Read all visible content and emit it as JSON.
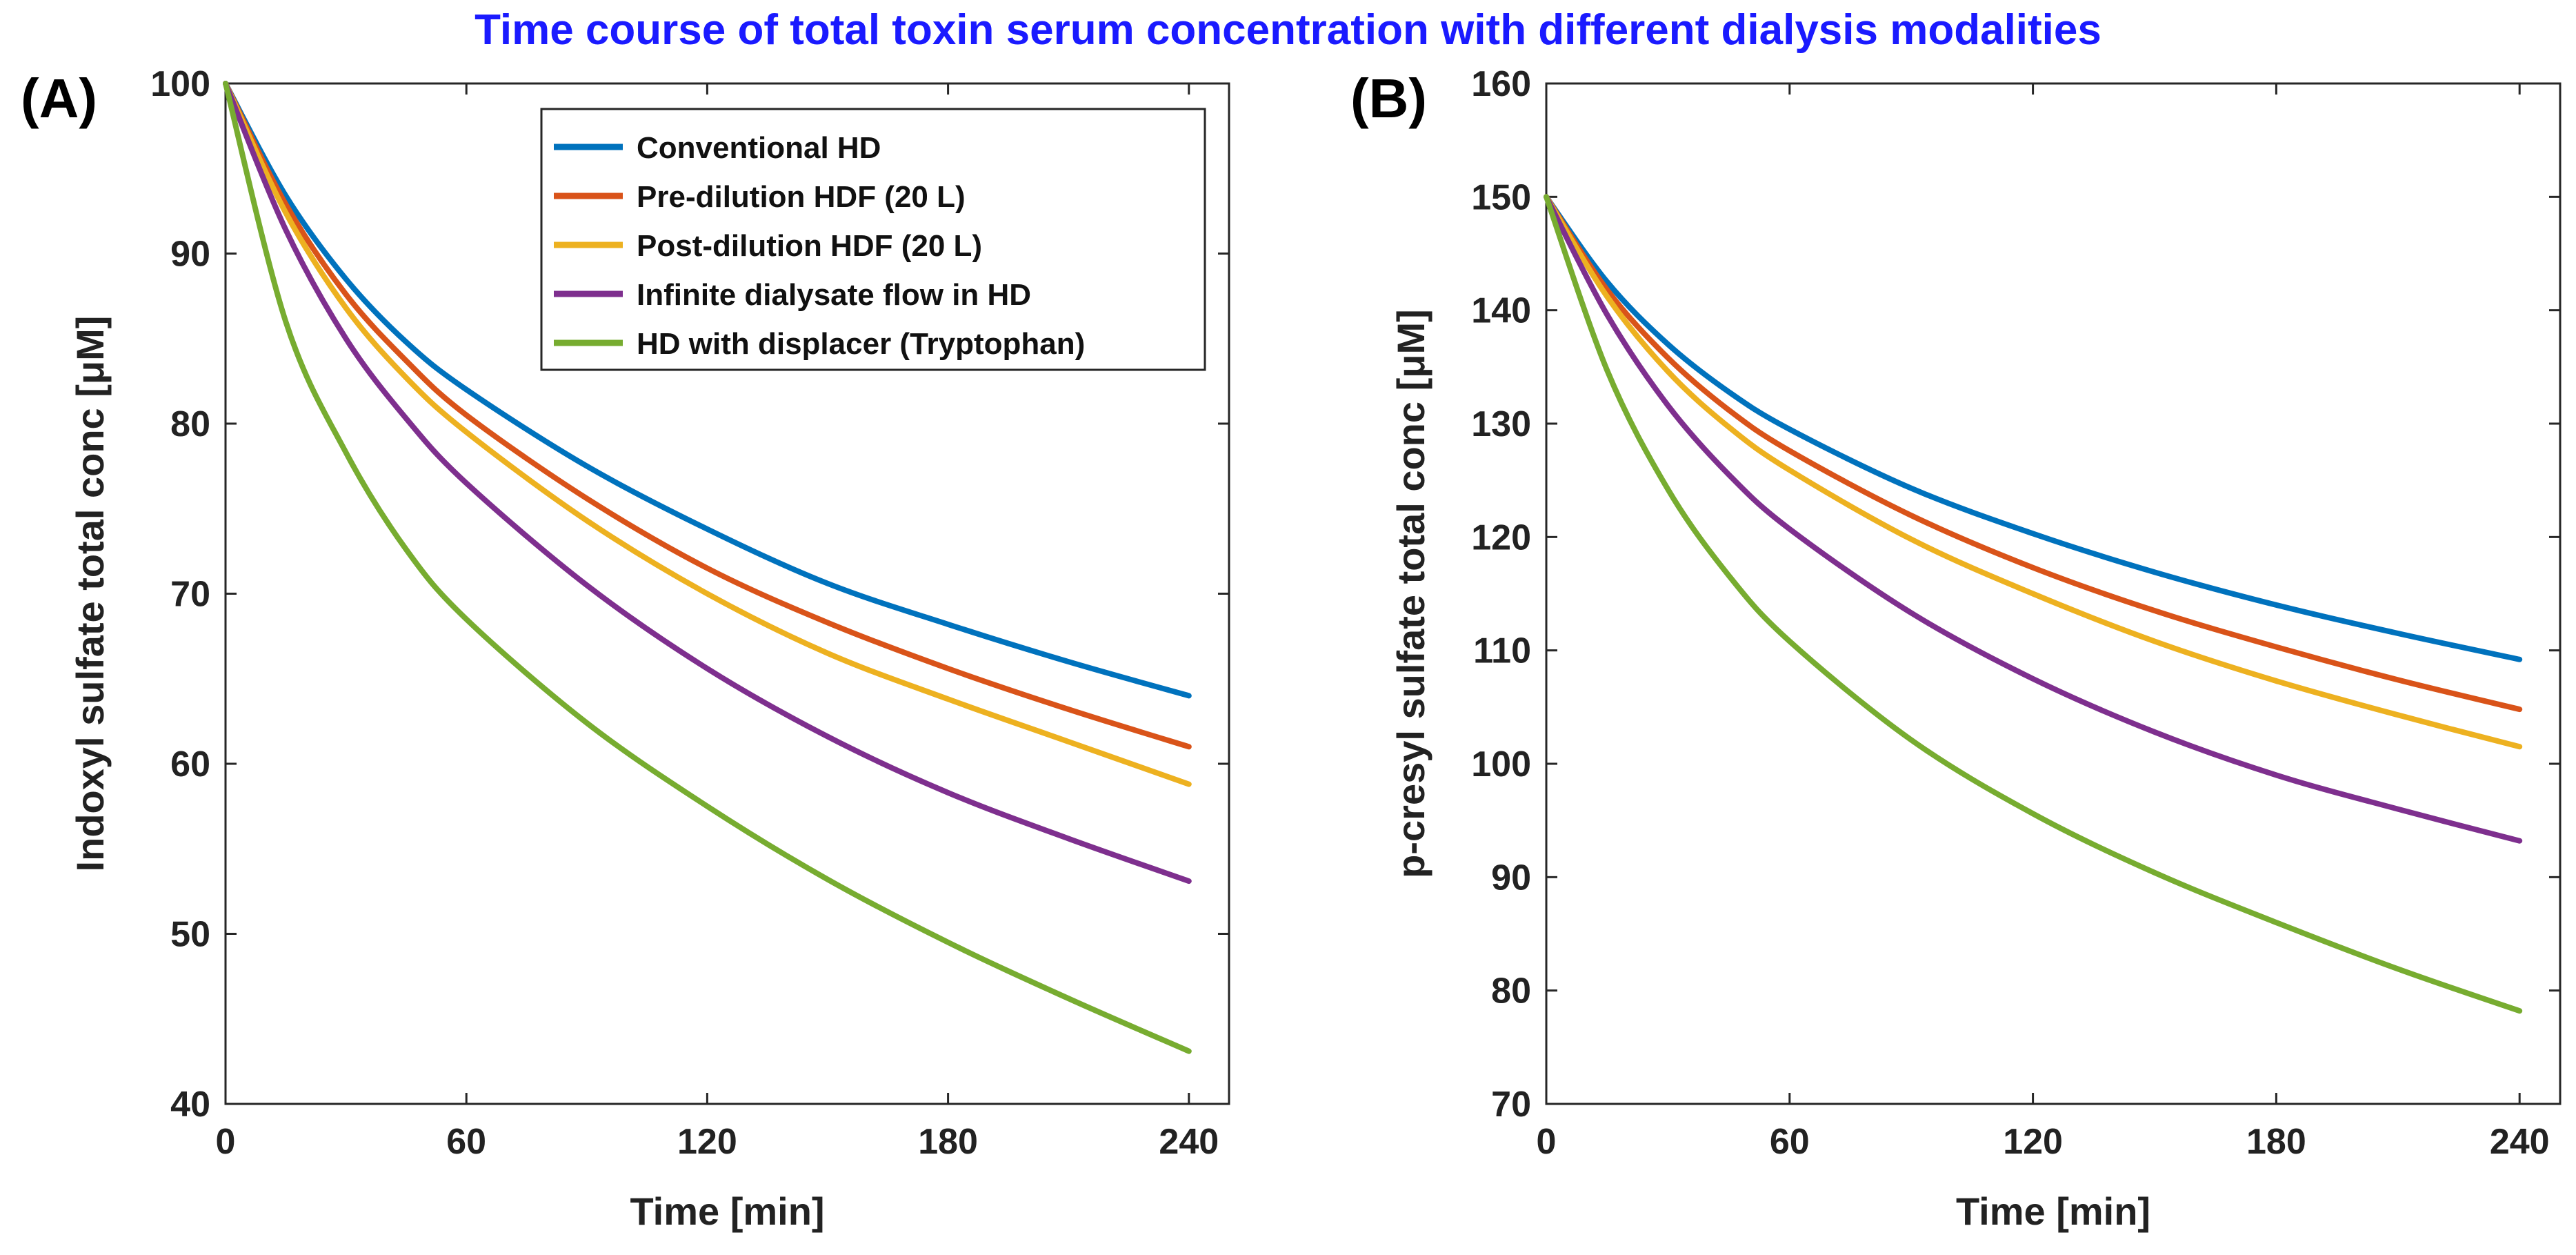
{
  "title": "Time course of total toxin serum concentration with different dialysis modalities",
  "colors": {
    "title": "#1a1aff",
    "series": [
      "#0072BD",
      "#D95319",
      "#EDB120",
      "#7E2F8E",
      "#77AC30"
    ]
  },
  "chart_data": [
    {
      "type": "line",
      "panel": "(A)",
      "xlabel": "Time [min]",
      "ylabel": "Indoxyl sulfate total conc [μM]",
      "xlim": [
        0,
        250
      ],
      "ylim": [
        40,
        100
      ],
      "xticks": [
        0,
        60,
        120,
        180,
        240
      ],
      "yticks": [
        40,
        50,
        60,
        70,
        80,
        90,
        100
      ],
      "legend_position": "top-right",
      "x": [
        0,
        15,
        30,
        45,
        60,
        90,
        120,
        150,
        180,
        210,
        240
      ],
      "series": [
        {
          "name": "Conventional HD",
          "values": [
            100,
            93.4,
            88.5,
            84.8,
            82.0,
            77.5,
            73.8,
            70.6,
            68.2,
            66.0,
            64.0
          ]
        },
        {
          "name": "Pre-dilution HDF (20 L)",
          "values": [
            100,
            92.9,
            87.6,
            83.7,
            80.5,
            75.6,
            71.5,
            68.3,
            65.6,
            63.2,
            61.0
          ]
        },
        {
          "name": "Post-dilution HDF (20 L)",
          "values": [
            100,
            92.4,
            86.8,
            82.7,
            79.5,
            74.3,
            70.0,
            66.5,
            63.8,
            61.3,
            58.8
          ]
        },
        {
          "name": "Infinite dialysate flow in HD",
          "values": [
            100,
            91.4,
            85.0,
            80.3,
            76.5,
            70.5,
            65.6,
            61.6,
            58.3,
            55.6,
            53.1
          ]
        },
        {
          "name": "HD with displacer (Tryptophan)",
          "values": [
            100,
            86.0,
            78.3,
            72.6,
            68.5,
            62.4,
            57.5,
            53.2,
            49.5,
            46.2,
            43.1
          ]
        }
      ]
    },
    {
      "type": "line",
      "panel": "(B)",
      "xlabel": "Time [min]",
      "ylabel": "p-cresyl sulfate total conc [μM]",
      "xlim": [
        0,
        250
      ],
      "ylim": [
        70,
        160
      ],
      "xticks": [
        0,
        60,
        120,
        180,
        240
      ],
      "yticks": [
        70,
        80,
        90,
        100,
        110,
        120,
        130,
        140,
        150,
        160
      ],
      "x": [
        0,
        15,
        30,
        45,
        60,
        90,
        120,
        150,
        180,
        210,
        240
      ],
      "series": [
        {
          "name": "Conventional HD",
          "values": [
            150,
            142.5,
            137.0,
            132.8,
            129.5,
            124.3,
            120.3,
            116.9,
            114.0,
            111.5,
            109.2
          ]
        },
        {
          "name": "Pre-dilution HDF (20 L)",
          "values": [
            150,
            141.8,
            135.8,
            131.2,
            127.6,
            121.9,
            117.3,
            113.5,
            110.3,
            107.4,
            104.8
          ]
        },
        {
          "name": "Post-dilution HDF (20 L)",
          "values": [
            150,
            141.2,
            134.6,
            129.7,
            125.9,
            119.8,
            115.0,
            110.8,
            107.3,
            104.3,
            101.5
          ]
        },
        {
          "name": "Infinite dialysate flow in HD",
          "values": [
            150,
            139.6,
            131.6,
            125.5,
            120.7,
            113.3,
            107.5,
            102.8,
            99.0,
            96.0,
            93.2
          ]
        },
        {
          "name": "HD with displacer (Tryptophan)",
          "values": [
            150,
            134.7,
            124.2,
            116.6,
            110.8,
            102.1,
            95.6,
            90.4,
            86.0,
            81.9,
            78.2
          ]
        }
      ]
    }
  ]
}
